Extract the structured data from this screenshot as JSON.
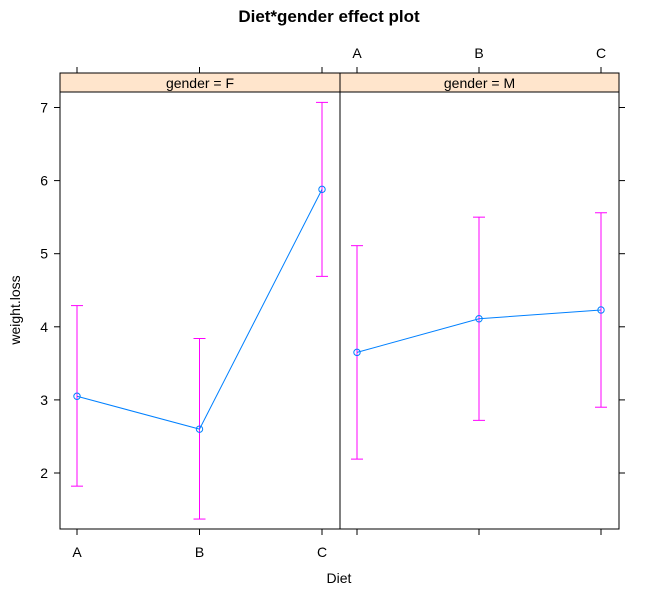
{
  "chart_data": {
    "type": "line",
    "title": "Diet*gender effect plot",
    "xlabel": "Diet",
    "ylabel": "weight.loss",
    "categories": [
      "A",
      "B",
      "C"
    ],
    "ylim": [
      1.2,
      7.2
    ],
    "yticks": [
      2,
      3,
      4,
      5,
      6,
      7
    ],
    "grid": false,
    "panels": [
      {
        "strip_label": "gender = F",
        "values": [
          3.05,
          2.6,
          5.88
        ],
        "lower": [
          1.82,
          1.37,
          4.69
        ],
        "upper": [
          4.29,
          3.84,
          7.07
        ]
      },
      {
        "strip_label": "gender = M",
        "values": [
          3.65,
          4.11,
          4.23
        ],
        "lower": [
          2.19,
          2.72,
          2.9
        ],
        "upper": [
          5.11,
          5.5,
          5.56
        ]
      }
    ],
    "colors": {
      "line": "#0080ff",
      "ci": "#ff00ff",
      "strip_bg": "#ffe5cc",
      "frame": "#000000"
    }
  }
}
